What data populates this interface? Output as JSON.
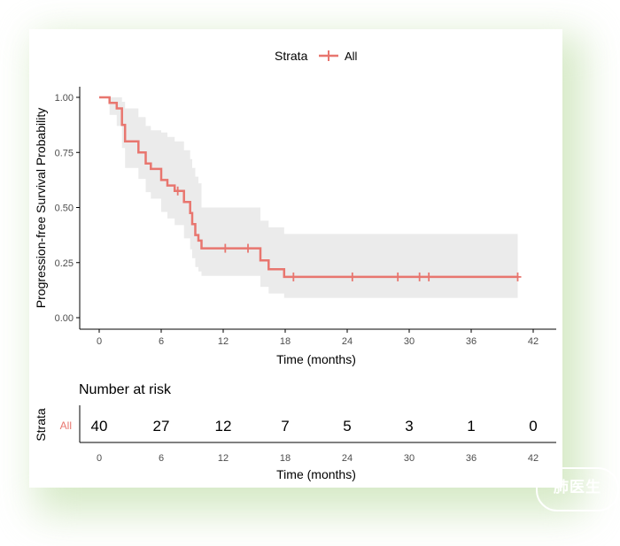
{
  "legend": {
    "title": "Strata",
    "label": "All"
  },
  "colors": {
    "curve": "#E8766F",
    "band": "#EBEBEB",
    "axis": "#000000",
    "tick_text": "#4D4D4D"
  },
  "watermark_text": "肺医生",
  "chart_data": {
    "type": "line",
    "subtype": "kaplan-meier",
    "ylabel": "Progression-free Survival Probability",
    "xlabel": "Time (months)",
    "xlim": [
      0,
      42
    ],
    "ylim": [
      0,
      1
    ],
    "x_ticks": [
      0,
      6,
      12,
      18,
      24,
      30,
      36,
      42
    ],
    "y_ticks": [
      "0.00",
      "0.25",
      "0.50",
      "0.75",
      "1.00"
    ],
    "grid": false,
    "legend_position": "top",
    "series": [
      {
        "name": "All",
        "steps": [
          [
            0,
            1.0
          ],
          [
            1.0,
            0.975
          ],
          [
            1.7,
            0.95
          ],
          [
            2.2,
            0.875
          ],
          [
            2.5,
            0.8
          ],
          [
            3.8,
            0.75
          ],
          [
            4.5,
            0.7
          ],
          [
            5.0,
            0.675
          ],
          [
            6.0,
            0.625
          ],
          [
            6.6,
            0.6
          ],
          [
            7.3,
            0.575
          ],
          [
            8.2,
            0.525
          ],
          [
            8.8,
            0.475
          ],
          [
            9.0,
            0.425
          ],
          [
            9.3,
            0.375
          ],
          [
            9.6,
            0.35
          ],
          [
            9.9,
            0.315
          ],
          [
            15.6,
            0.26
          ],
          [
            16.4,
            0.22
          ],
          [
            17.9,
            0.185
          ],
          [
            40.5,
            0.185
          ]
        ],
        "ci_lower": [
          [
            0,
            1.0
          ],
          [
            1.0,
            0.92
          ],
          [
            1.7,
            0.87
          ],
          [
            2.2,
            0.77
          ],
          [
            2.5,
            0.68
          ],
          [
            3.8,
            0.63
          ],
          [
            4.5,
            0.57
          ],
          [
            5.0,
            0.54
          ],
          [
            6.0,
            0.48
          ],
          [
            6.6,
            0.45
          ],
          [
            7.3,
            0.42
          ],
          [
            8.2,
            0.36
          ],
          [
            8.8,
            0.31
          ],
          [
            9.0,
            0.27
          ],
          [
            9.3,
            0.23
          ],
          [
            9.6,
            0.21
          ],
          [
            9.9,
            0.19
          ],
          [
            15.6,
            0.14
          ],
          [
            16.4,
            0.11
          ],
          [
            17.9,
            0.09
          ],
          [
            40.5,
            0.09
          ]
        ],
        "ci_upper": [
          [
            0,
            1.0
          ],
          [
            1.0,
            1.0
          ],
          [
            1.7,
            1.0
          ],
          [
            2.2,
            0.98
          ],
          [
            2.5,
            0.95
          ],
          [
            3.8,
            0.91
          ],
          [
            4.5,
            0.87
          ],
          [
            5.0,
            0.85
          ],
          [
            6.0,
            0.84
          ],
          [
            6.6,
            0.82
          ],
          [
            7.3,
            0.8
          ],
          [
            8.2,
            0.76
          ],
          [
            8.8,
            0.72
          ],
          [
            9.0,
            0.68
          ],
          [
            9.3,
            0.64
          ],
          [
            9.6,
            0.61
          ],
          [
            9.9,
            0.5
          ],
          [
            15.6,
            0.44
          ],
          [
            16.4,
            0.41
          ],
          [
            17.9,
            0.38
          ],
          [
            40.5,
            0.38
          ]
        ],
        "censored": [
          [
            7.6,
            0.575
          ],
          [
            12.2,
            0.315
          ],
          [
            14.4,
            0.315
          ],
          [
            18.8,
            0.185
          ],
          [
            24.5,
            0.185
          ],
          [
            28.9,
            0.185
          ],
          [
            31.0,
            0.185
          ],
          [
            31.9,
            0.185
          ],
          [
            40.5,
            0.185
          ]
        ]
      }
    ],
    "risk_table": {
      "title": "Number at risk",
      "ylabel": "Strata",
      "stratum": "All",
      "times": [
        0,
        6,
        12,
        18,
        24,
        30,
        36,
        42
      ],
      "counts": [
        "40",
        "27",
        "12",
        "7",
        "5",
        "3",
        "1",
        "0"
      ],
      "xlabel": "Time (months)"
    }
  }
}
